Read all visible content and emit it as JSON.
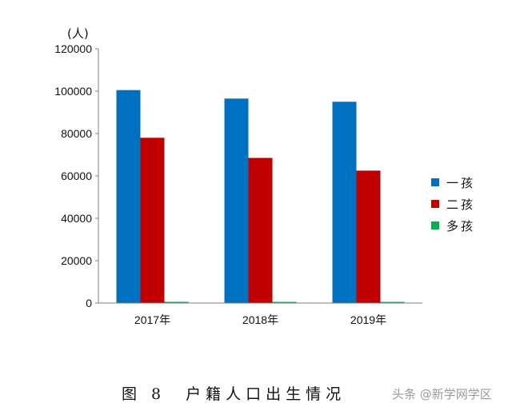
{
  "chart_data": {
    "type": "bar",
    "unit_label": "(人)",
    "categories": [
      "2017年",
      "2018年",
      "2019年"
    ],
    "series": [
      {
        "name": "一孩",
        "color": "#0070c0",
        "values": [
          100500,
          96500,
          95000
        ]
      },
      {
        "name": "二孩",
        "color": "#c00000",
        "values": [
          78000,
          68500,
          62500
        ]
      },
      {
        "name": "多孩",
        "color": "#00b050",
        "values": [
          600,
          500,
          500
        ]
      }
    ],
    "ylim": [
      0,
      120000
    ],
    "yticks": [
      "0",
      "20000",
      "40000",
      "60000",
      "80000",
      "100000",
      "120000"
    ],
    "grid": false,
    "legend_position": "right"
  },
  "caption": "图 8　户籍人口出生情况",
  "watermark": "头条 @新学网学区"
}
